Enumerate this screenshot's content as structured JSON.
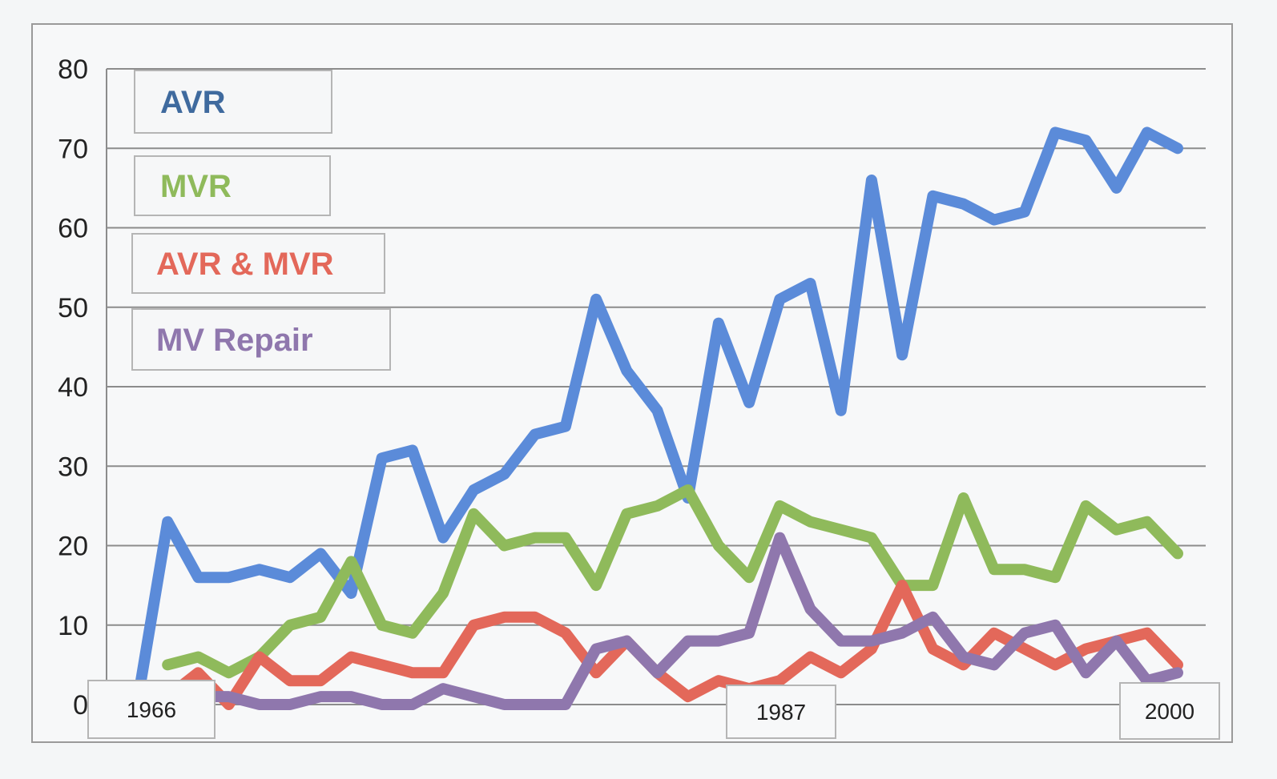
{
  "chart_data": {
    "type": "line",
    "title": "",
    "xlabel": "",
    "ylabel": "",
    "ylim": [
      0,
      80
    ],
    "yticks": [
      0,
      10,
      20,
      30,
      40,
      50,
      60,
      70,
      80
    ],
    "grid": true,
    "legend_position": "top-left",
    "x_labels": [
      {
        "x": 1966,
        "text": "1966"
      },
      {
        "x": 1987,
        "text": "1987"
      },
      {
        "x": 2000,
        "text": "2000"
      }
    ],
    "x": [
      1966,
      1967,
      1968,
      1969,
      1970,
      1971,
      1972,
      1973,
      1974,
      1975,
      1976,
      1977,
      1978,
      1979,
      1980,
      1981,
      1982,
      1983,
      1984,
      1985,
      1986,
      1987,
      1988,
      1989,
      1990,
      1991,
      1992,
      1993,
      1994,
      1995,
      1996,
      1997,
      1998,
      1999,
      2000,
      2001,
      2002,
      2003
    ],
    "series": [
      {
        "name": "AVR",
        "color": "#5b8bd9",
        "values": [
          0,
          23,
          16,
          16,
          17,
          16,
          19,
          14,
          31,
          32,
          21,
          27,
          29,
          34,
          35,
          51,
          42,
          37,
          26,
          48,
          38,
          51,
          53,
          37,
          66,
          44,
          64,
          63,
          61,
          62,
          72,
          71,
          65,
          72,
          70,
          null,
          null,
          null
        ]
      },
      {
        "name": "MVR",
        "color": "#8fba5b",
        "values": [
          null,
          5,
          6,
          4,
          6,
          10,
          11,
          18,
          10,
          9,
          14,
          24,
          20,
          21,
          21,
          15,
          24,
          25,
          27,
          20,
          16,
          25,
          23,
          22,
          21,
          15,
          15,
          26,
          17,
          17,
          16,
          25,
          22,
          23,
          19,
          null,
          null,
          null
        ]
      },
      {
        "name": "AVR & MVR",
        "color": "#e3685a",
        "values": [
          null,
          1,
          4,
          0,
          6,
          3,
          3,
          6,
          5,
          4,
          4,
          10,
          11,
          11,
          9,
          4,
          8,
          4,
          1,
          3,
          2,
          3,
          6,
          4,
          7,
          15,
          7,
          5,
          9,
          7,
          5,
          7,
          8,
          9,
          5,
          null,
          null,
          null
        ]
      },
      {
        "name": "MV Repair",
        "color": "#8f77ad",
        "values": [
          2,
          1,
          1,
          1,
          0,
          0,
          1,
          1,
          0,
          0,
          2,
          1,
          0,
          0,
          0,
          7,
          8,
          4,
          8,
          8,
          9,
          21,
          12,
          8,
          8,
          9,
          11,
          6,
          5,
          9,
          10,
          4,
          8,
          3,
          4,
          null,
          null,
          null
        ]
      }
    ]
  }
}
